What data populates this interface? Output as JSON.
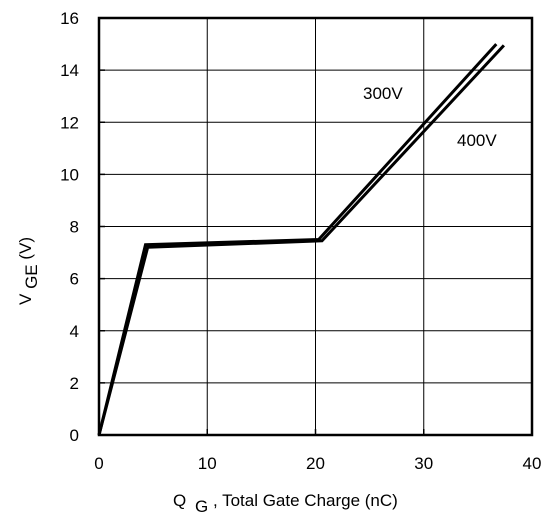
{
  "chart_data": {
    "type": "line",
    "title": "",
    "xlabel": {
      "main": "Q",
      "sub": "G",
      "rest": ", Total Gate Charge (nC)"
    },
    "ylabel": {
      "main": "V",
      "sub": "GE",
      "rest": " (V)"
    },
    "xlim": [
      0,
      40
    ],
    "ylim": [
      0,
      16
    ],
    "xticks": [
      "0",
      "10",
      "20",
      "30",
      "40"
    ],
    "yticks": [
      "0",
      "2",
      "4",
      "6",
      "8",
      "10",
      "12",
      "14",
      "16"
    ],
    "grid": true,
    "series": [
      {
        "name": "300V",
        "x": [
          0,
          4.3,
          20.3,
          36.7
        ],
        "y": [
          0,
          7.3,
          7.5,
          15.0
        ]
      },
      {
        "name": "400V",
        "x": [
          0,
          4.5,
          20.6,
          37.4
        ],
        "y": [
          0,
          7.2,
          7.45,
          14.95
        ]
      }
    ],
    "colors": {
      "line": "#000000",
      "grid": "#000000",
      "background": "#ffffff"
    }
  }
}
